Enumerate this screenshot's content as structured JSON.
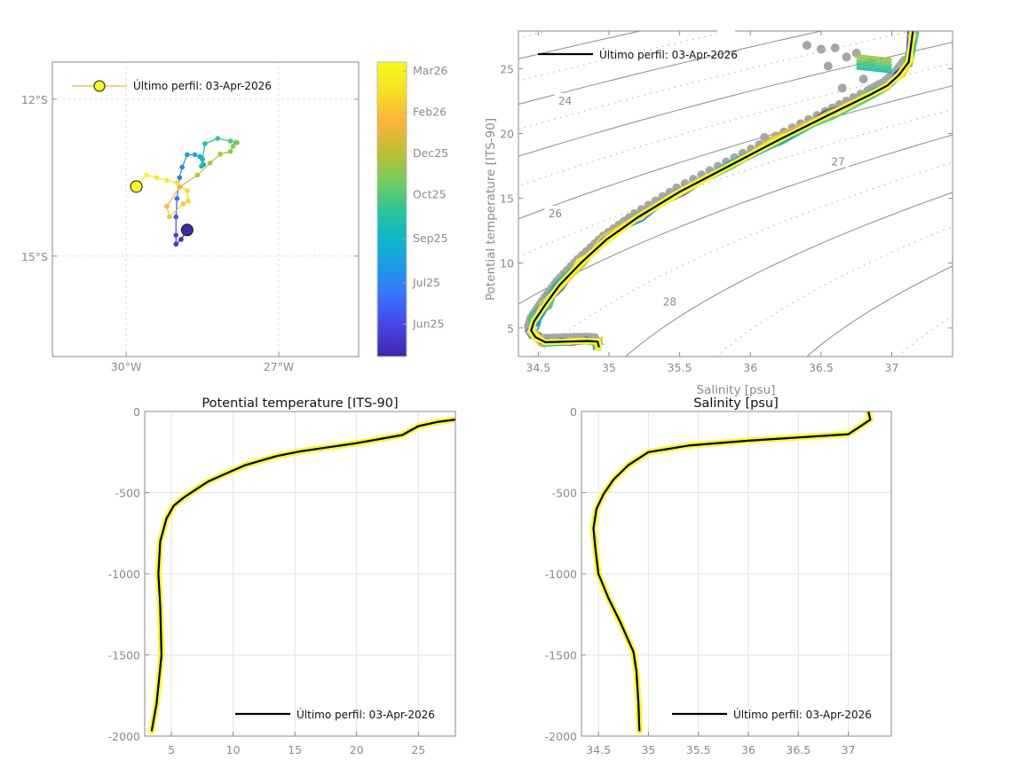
{
  "chart_data": [
    {
      "id": "map",
      "type": "scatter",
      "title": "",
      "xlabel": "",
      "ylabel": "",
      "xlim": [
        -31.45,
        -25.43
      ],
      "ylim": [
        -16.92,
        -11.29
      ],
      "x_ticks": [
        {
          "value": -30,
          "label": "30°W"
        },
        {
          "value": -27,
          "label": "27°W"
        }
      ],
      "y_ticks": [
        {
          "value": -12,
          "label": "12°S"
        },
        {
          "value": -15,
          "label": "15°S"
        }
      ],
      "grid": true,
      "legend": {
        "label": "Último perfil: 03-Apr-2026",
        "placement": "top-left"
      },
      "first_point": {
        "lon": -28.8,
        "lat": -14.5,
        "color": "#3d2aa8"
      },
      "last_point": {
        "lon": -29.8,
        "lat": -13.67,
        "color": "#f9fb1e"
      },
      "track": [
        {
          "lon": -28.8,
          "lat": -14.5,
          "t": 0.0
        },
        {
          "lon": -28.92,
          "lat": -14.68,
          "t": 0.04
        },
        {
          "lon": -29.02,
          "lat": -14.77,
          "t": 0.07
        },
        {
          "lon": -29.02,
          "lat": -14.6,
          "t": 0.11
        },
        {
          "lon": -29.02,
          "lat": -14.25,
          "t": 0.15
        },
        {
          "lon": -29.0,
          "lat": -13.9,
          "t": 0.19
        },
        {
          "lon": -28.95,
          "lat": -13.5,
          "t": 0.23
        },
        {
          "lon": -28.9,
          "lat": -13.3,
          "t": 0.27
        },
        {
          "lon": -28.8,
          "lat": -13.06,
          "t": 0.31
        },
        {
          "lon": -28.65,
          "lat": -13.06,
          "t": 0.35
        },
        {
          "lon": -28.55,
          "lat": -13.1,
          "t": 0.38
        },
        {
          "lon": -28.5,
          "lat": -13.15,
          "t": 0.4
        },
        {
          "lon": -28.48,
          "lat": -13.25,
          "t": 0.42
        },
        {
          "lon": -28.52,
          "lat": -13.28,
          "t": 0.44
        },
        {
          "lon": -28.45,
          "lat": -12.85,
          "t": 0.46
        },
        {
          "lon": -28.2,
          "lat": -12.75,
          "t": 0.5
        },
        {
          "lon": -27.95,
          "lat": -12.8,
          "t": 0.54
        },
        {
          "lon": -27.85,
          "lat": -12.83,
          "t": 0.57
        },
        {
          "lon": -27.82,
          "lat": -12.83,
          "t": 0.59
        },
        {
          "lon": -27.9,
          "lat": -12.9,
          "t": 0.61
        },
        {
          "lon": -27.95,
          "lat": -13.0,
          "t": 0.63
        },
        {
          "lon": -28.15,
          "lat": -13.05,
          "t": 0.66
        },
        {
          "lon": -28.35,
          "lat": -13.22,
          "t": 0.69
        },
        {
          "lon": -28.6,
          "lat": -13.45,
          "t": 0.72
        },
        {
          "lon": -28.95,
          "lat": -13.68,
          "t": 0.76
        },
        {
          "lon": -29.2,
          "lat": -14.05,
          "t": 0.8
        },
        {
          "lon": -29.15,
          "lat": -14.25,
          "t": 0.83
        },
        {
          "lon": -28.88,
          "lat": -14.0,
          "t": 0.86
        },
        {
          "lon": -28.78,
          "lat": -13.95,
          "t": 0.88
        },
        {
          "lon": -28.8,
          "lat": -13.75,
          "t": 0.9
        },
        {
          "lon": -29.0,
          "lat": -13.6,
          "t": 0.92
        },
        {
          "lon": -29.2,
          "lat": -13.55,
          "t": 0.94
        },
        {
          "lon": -29.4,
          "lat": -13.5,
          "t": 0.96
        },
        {
          "lon": -29.6,
          "lat": -13.45,
          "t": 0.98
        },
        {
          "lon": -29.8,
          "lat": -13.67,
          "t": 1.0
        }
      ]
    },
    {
      "id": "colorbar",
      "type": "heatmap",
      "colormap": [
        "#3e26a8",
        "#4743e4",
        "#3a6ffd",
        "#1c99e8",
        "#0db7c7",
        "#2cc596",
        "#79cc5a",
        "#c1bf31",
        "#fcb53b",
        "#f5df24",
        "#f9fb15"
      ],
      "ticks": [
        {
          "label": "Jun25",
          "t": 0.11
        },
        {
          "label": "Jul25",
          "t": 0.25
        },
        {
          "label": "Sep25",
          "t": 0.4
        },
        {
          "label": "Oct25",
          "t": 0.55
        },
        {
          "label": "Dec25",
          "t": 0.69
        },
        {
          "label": "Feb26",
          "t": 0.83
        },
        {
          "label": "Mar26",
          "t": 0.97
        }
      ]
    },
    {
      "id": "ts_diagram",
      "type": "line",
      "title": "",
      "xlabel": "Salinity [psu]",
      "ylabel": "Potential temperature [ITS-90]",
      "xlim": [
        34.36,
        37.43
      ],
      "ylim": [
        2.8,
        27.9
      ],
      "x_ticks": [
        34.5,
        35,
        35.5,
        36,
        36.5,
        37
      ],
      "y_ticks": [
        5,
        10,
        15,
        20,
        25
      ],
      "legend": {
        "label": "Último perfil: 03-Apr-2026",
        "placement": "top-left"
      },
      "isopycnal_labels": [
        {
          "label": "24",
          "s": 34.69,
          "t": 22.5
        },
        {
          "label": "26",
          "s": 34.62,
          "t": 13.8
        },
        {
          "label": "27",
          "s": 36.62,
          "t": 17.8
        },
        {
          "label": "28",
          "s": 35.43,
          "t": 7.0
        }
      ],
      "last_profile": {
        "name": "Último perfil: 03-Apr-2026",
        "points": [
          [
            34.93,
            3.5
          ],
          [
            34.92,
            3.95
          ],
          [
            34.85,
            4.0
          ],
          [
            34.7,
            3.95
          ],
          [
            34.55,
            3.9
          ],
          [
            34.48,
            4.3
          ],
          [
            34.45,
            4.8
          ],
          [
            34.47,
            5.5
          ],
          [
            34.55,
            6.8
          ],
          [
            34.65,
            8.3
          ],
          [
            34.8,
            10.0
          ],
          [
            34.98,
            11.8
          ],
          [
            35.2,
            13.5
          ],
          [
            35.5,
            15.5
          ],
          [
            35.85,
            17.5
          ],
          [
            36.2,
            19.5
          ],
          [
            36.55,
            21.4
          ],
          [
            36.85,
            23.0
          ],
          [
            36.97,
            23.7
          ],
          [
            37.05,
            24.5
          ],
          [
            37.12,
            25.5
          ],
          [
            37.15,
            27.9
          ]
        ]
      },
      "historical_points_color": "#a6a6a6"
    },
    {
      "id": "temperature_profile",
      "type": "line",
      "title": "Potential temperature [ITS-90]",
      "xlabel": "",
      "ylabel": "",
      "xlim": [
        2.84,
        28.0
      ],
      "ylim": [
        -2000,
        0
      ],
      "x_ticks": [
        5,
        10,
        15,
        20,
        25
      ],
      "y_ticks": [
        0,
        -500,
        -1000,
        -1500,
        -2000
      ],
      "grid": true,
      "legend": {
        "label": "Último perfil: 03-Apr-2026",
        "placement": "bottom-right"
      },
      "last_profile": {
        "name": "Último perfil: 03-Apr-2026",
        "points": [
          [
            28.0,
            -50
          ],
          [
            26.5,
            -65
          ],
          [
            25.0,
            -90
          ],
          [
            23.7,
            -145
          ],
          [
            20.0,
            -195
          ],
          [
            15.5,
            -245
          ],
          [
            13.5,
            -275
          ],
          [
            11.0,
            -330
          ],
          [
            9.5,
            -380
          ],
          [
            8.0,
            -430
          ],
          [
            7.0,
            -480
          ],
          [
            6.0,
            -530
          ],
          [
            5.2,
            -580
          ],
          [
            4.6,
            -660
          ],
          [
            4.1,
            -800
          ],
          [
            3.95,
            -1000
          ],
          [
            4.1,
            -1200
          ],
          [
            4.2,
            -1500
          ],
          [
            3.8,
            -1800
          ],
          [
            3.4,
            -1970
          ]
        ]
      }
    },
    {
      "id": "salinity_profile",
      "type": "line",
      "title": "Salinity [psu]",
      "xlabel": "",
      "ylabel": "",
      "xlim": [
        34.33,
        37.43
      ],
      "ylim": [
        -2000,
        0
      ],
      "x_ticks": [
        34.5,
        35,
        35.5,
        36,
        36.5,
        37
      ],
      "y_ticks": [
        0,
        -500,
        -1000,
        -1500,
        -2000
      ],
      "grid": true,
      "legend": {
        "label": "Último perfil: 03-Apr-2026",
        "placement": "bottom-right"
      },
      "last_profile": {
        "name": "Último perfil: 03-Apr-2026",
        "points": [
          [
            37.2,
            0
          ],
          [
            37.22,
            -50
          ],
          [
            37.1,
            -100
          ],
          [
            37.0,
            -140
          ],
          [
            36.0,
            -180
          ],
          [
            35.4,
            -210
          ],
          [
            35.0,
            -250
          ],
          [
            34.8,
            -330
          ],
          [
            34.65,
            -420
          ],
          [
            34.55,
            -510
          ],
          [
            34.48,
            -600
          ],
          [
            34.45,
            -720
          ],
          [
            34.47,
            -850
          ],
          [
            34.5,
            -1000
          ],
          [
            34.6,
            -1150
          ],
          [
            34.72,
            -1300
          ],
          [
            34.85,
            -1480
          ],
          [
            34.88,
            -1600
          ],
          [
            34.9,
            -1800
          ],
          [
            34.91,
            -1970
          ]
        ]
      }
    }
  ],
  "legend_label": "Último perfil: 03-Apr-2026",
  "ts_xlabel_shadow": "Salinity [psu]",
  "sal_title_shadow": "Salinity [psu]"
}
